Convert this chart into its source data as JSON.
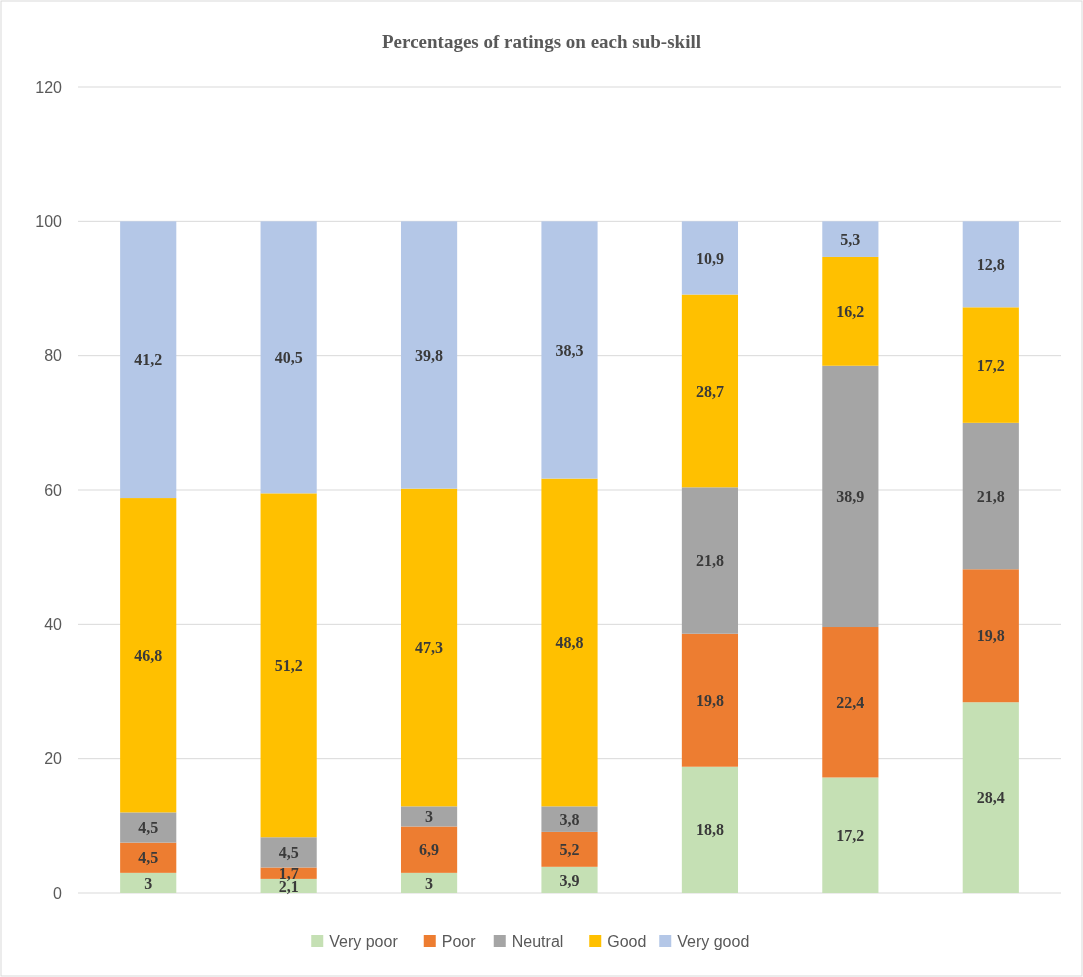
{
  "chart_data": {
    "type": "bar",
    "title": "Percentages of ratings on each sub-skill",
    "stacked": true,
    "categories": [
      null,
      null,
      null,
      null,
      null,
      null,
      null
    ],
    "ylim": [
      0,
      120
    ],
    "yticks": [
      0,
      20,
      40,
      60,
      80,
      100,
      120
    ],
    "grid": "y",
    "legend": "bottom",
    "series": [
      {
        "name": "Very poor",
        "color": "#c5e0b4",
        "values": [
          3,
          2.1,
          3,
          3.9,
          18.8,
          17.2,
          28.4
        ],
        "value_labels": [
          "3",
          "2,1",
          "3",
          "3,9",
          "18,8",
          "17,2",
          "28,4"
        ]
      },
      {
        "name": "Poor",
        "color": "#ed7d31",
        "values": [
          4.5,
          1.7,
          6.9,
          5.2,
          19.8,
          22.4,
          19.8
        ],
        "value_labels": [
          "4,5",
          "1,7",
          "6,9",
          "5,2",
          "19,8",
          "22,4",
          "19,8"
        ]
      },
      {
        "name": "Neutral",
        "color": "#a5a5a5",
        "values": [
          4.5,
          4.5,
          3,
          3.8,
          21.8,
          38.9,
          21.8
        ],
        "value_labels": [
          "4,5",
          "4,5",
          "3",
          "3,8",
          "21,8",
          "38,9",
          "21,8"
        ]
      },
      {
        "name": "Good",
        "color": "#ffc000",
        "values": [
          46.8,
          51.2,
          47.3,
          48.8,
          28.7,
          16.2,
          17.2
        ],
        "value_labels": [
          "46,8",
          "51,2",
          "47,3",
          "48,8",
          "28,7",
          "16,2",
          "17,2"
        ]
      },
      {
        "name": "Very good",
        "color": "#b4c7e7",
        "values": [
          41.2,
          40.5,
          39.8,
          38.3,
          10.9,
          5.3,
          12.8
        ],
        "value_labels": [
          "41,2",
          "40,5",
          "39,8",
          "38,3",
          "10,9",
          "5,3",
          "12,8"
        ]
      }
    ]
  }
}
